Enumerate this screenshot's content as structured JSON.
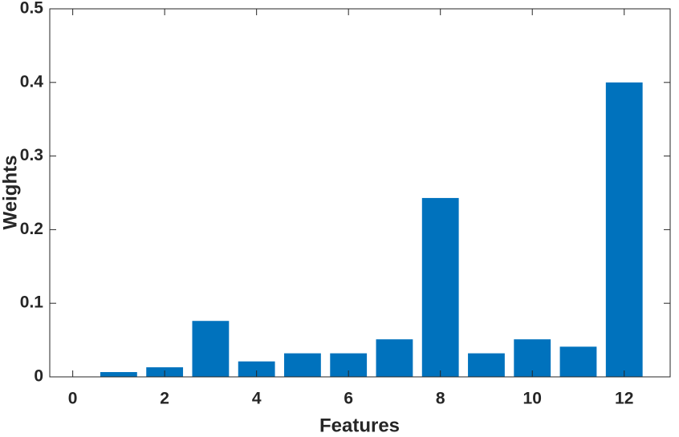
{
  "chart_data": {
    "type": "bar",
    "xlabel": "Features",
    "ylabel": "Weights",
    "x": [
      1,
      2,
      3,
      4,
      5,
      6,
      7,
      8,
      9,
      10,
      11,
      12
    ],
    "values": [
      0.0065,
      0.013,
      0.076,
      0.021,
      0.032,
      0.032,
      0.051,
      0.243,
      0.032,
      0.051,
      0.041,
      0.4
    ],
    "color": "#0072bd",
    "xlim": [
      -0.5,
      13
    ],
    "xticks": [
      0,
      2,
      4,
      6,
      8,
      10,
      12
    ],
    "ylim": [
      0,
      0.5
    ],
    "yticks": [
      0,
      0.1,
      0.2,
      0.3,
      0.4,
      0.5
    ],
    "grid": false
  }
}
